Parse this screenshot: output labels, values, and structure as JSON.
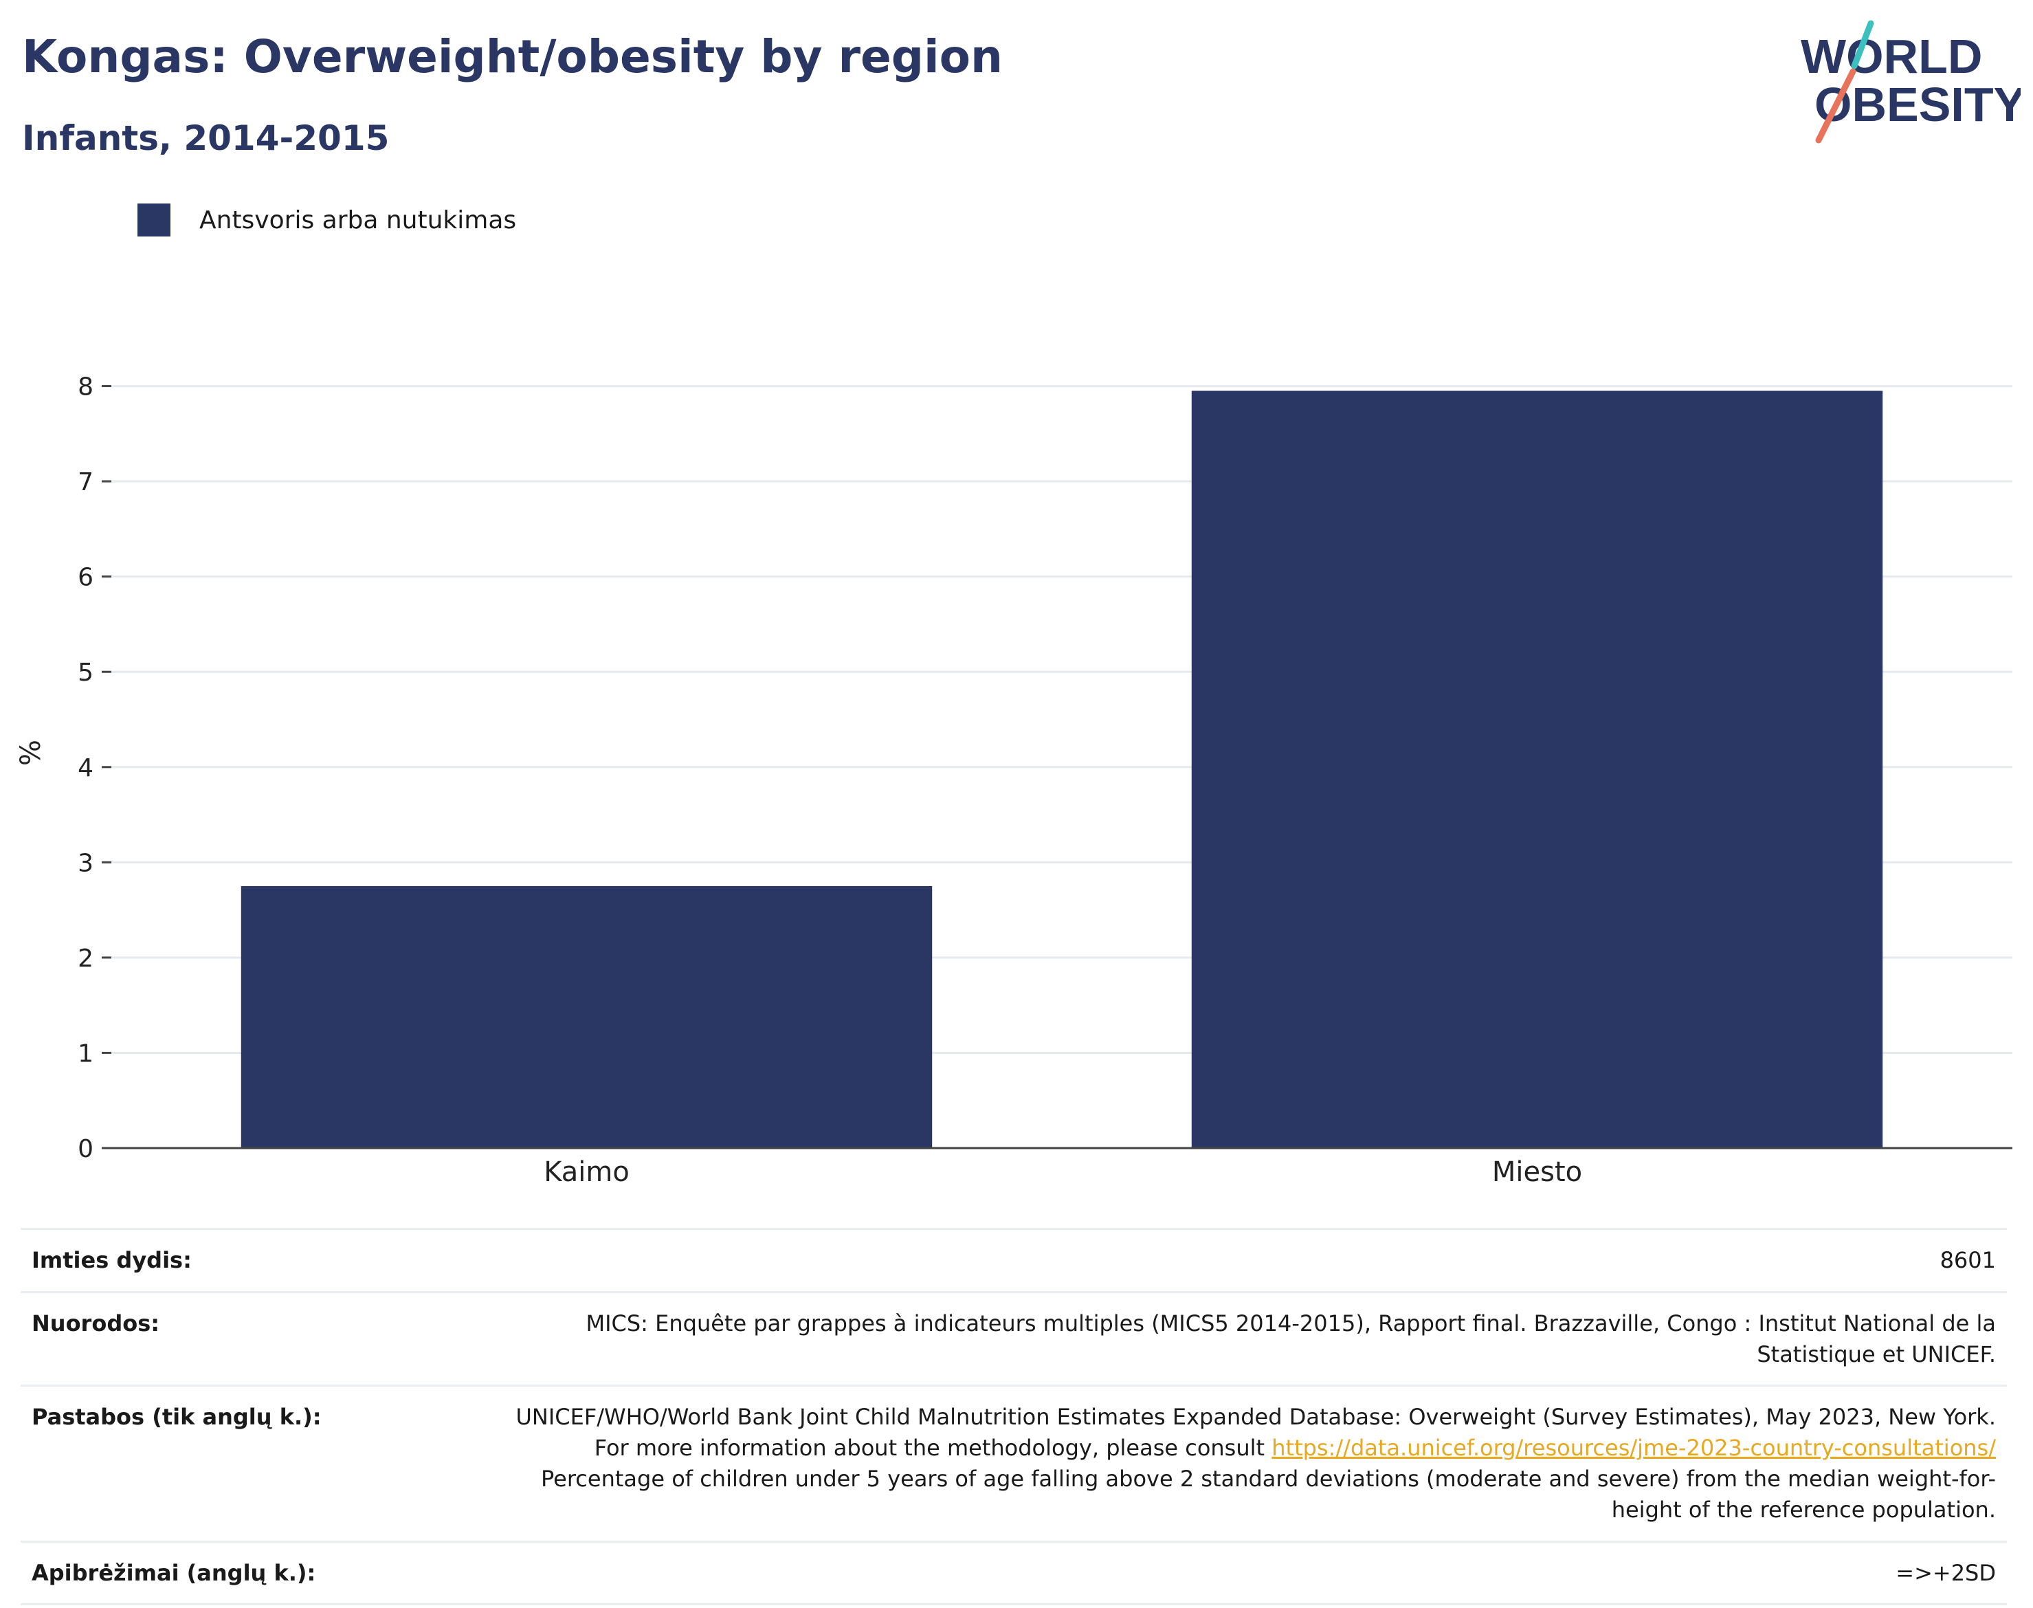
{
  "header": {
    "title": "Kongas: Overweight/obesity by region",
    "subtitle": "Infants, 2014-2015"
  },
  "logo": {
    "line1": "WORLD",
    "line2": "OBESITY",
    "colors": {
      "text": "#2a3663",
      "slash_top": "#3cbfbf",
      "slash_bottom": "#e8735a"
    }
  },
  "chart_data": {
    "type": "bar",
    "categories": [
      "Kaimo",
      "Miesto"
    ],
    "series": [
      {
        "name": "Antsvoris arba nutukimas",
        "values": [
          2.75,
          7.95
        ],
        "color": "#2a3663"
      }
    ],
    "ylabel": "%",
    "ylim": [
      0,
      8.3
    ],
    "yticks": [
      0,
      1,
      2,
      3,
      4,
      5,
      6,
      7,
      8
    ],
    "grid": true,
    "legend_position": "top-left"
  },
  "info": {
    "sample_label": "Imties dydis:",
    "sample_value": "8601",
    "refs_label": "Nuorodos:",
    "refs_value": "MICS: Enquête par grappes à indicateurs multiples (MICS5 2014-2015), Rapport final. Brazzaville, Congo : Institut National de la Statistique et UNICEF.",
    "notes_label": "Pastabos (tik anglų k.):",
    "notes_text1": "UNICEF/WHO/World Bank Joint Child Malnutrition Estimates Expanded Database: Overweight (Survey Estimates), May 2023, New York. For more information about the methodology, please consult ",
    "notes_link": "https://data.unicef.org/resources/jme-2023-country-consultations/",
    "notes_text2": " Percentage of children under 5 years of age falling above 2 standard deviations (moderate and severe) from the median weight-for-height of the reference population.",
    "defs_label": "Apibrėžimai (anglų k.):",
    "defs_value": "=>+2SD"
  }
}
